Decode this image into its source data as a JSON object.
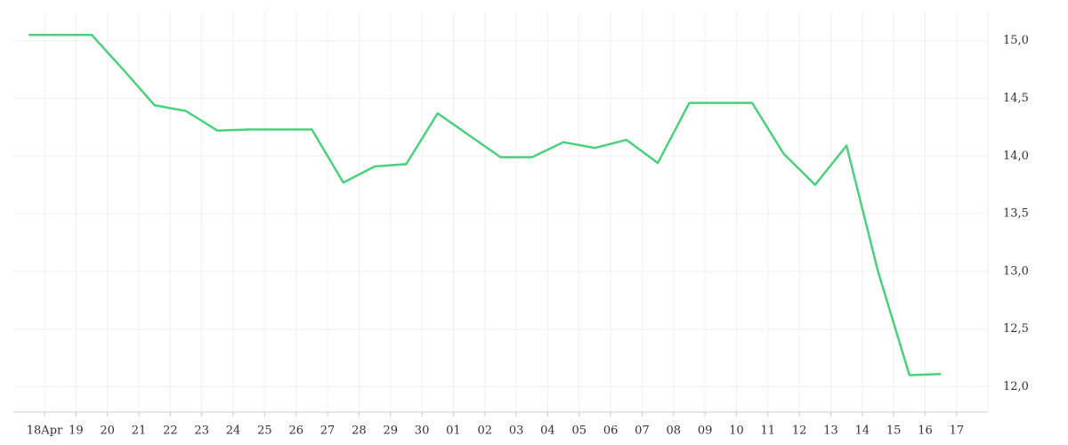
{
  "chart_data": {
    "type": "line",
    "categories": [
      "18Apr",
      "19",
      "20",
      "21",
      "22",
      "23",
      "24",
      "25",
      "26",
      "27",
      "28",
      "29",
      "30",
      "01",
      "02",
      "03",
      "04",
      "05",
      "06",
      "07",
      "08",
      "09",
      "10",
      "11",
      "12",
      "13",
      "14",
      "15",
      "16",
      "17"
    ],
    "values": [
      15.05,
      15.05,
      15.05,
      14.75,
      14.44,
      14.39,
      14.22,
      14.23,
      14.23,
      14.23,
      13.77,
      13.91,
      13.93,
      14.37,
      14.18,
      13.99,
      13.99,
      14.12,
      14.07,
      14.14,
      13.94,
      14.46,
      14.46,
      14.46,
      14.02,
      13.75,
      14.09,
      13.0,
      12.1,
      12.11
    ],
    "color": "#4cd07d",
    "ylim": [
      11.78,
      15.26
    ],
    "yticks": [
      {
        "value": 12,
        "label": "12,0"
      },
      {
        "value": 12.5,
        "label": "12,5"
      },
      {
        "value": 13,
        "label": "13,0"
      },
      {
        "value": 13.5,
        "label": "13,5"
      },
      {
        "value": 14,
        "label": "14,0"
      },
      {
        "value": 14.5,
        "label": "14,5"
      },
      {
        "value": 15,
        "label": "15,0"
      }
    ],
    "grid": true
  }
}
